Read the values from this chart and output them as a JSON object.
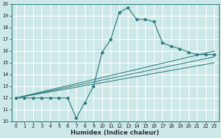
{
  "xlabel": "Humidex (Indice chaleur)",
  "bg_color": "#cce8e8",
  "grid_color": "#ffffff",
  "line_color": "#2d7d7d",
  "xlim": [
    -0.5,
    23.5
  ],
  "ylim": [
    10,
    20
  ],
  "xticks": [
    0,
    1,
    2,
    3,
    4,
    5,
    6,
    7,
    8,
    9,
    10,
    11,
    12,
    13,
    14,
    15,
    16,
    17,
    18,
    19,
    20,
    21,
    22,
    23
  ],
  "yticks": [
    10,
    11,
    12,
    13,
    14,
    15,
    16,
    17,
    18,
    19,
    20
  ],
  "main_line_x": [
    0,
    1,
    2,
    3,
    4,
    5,
    6,
    7,
    8,
    9,
    10,
    11,
    12,
    13,
    14,
    15,
    16,
    17,
    18,
    19,
    20,
    21,
    22,
    23
  ],
  "main_line_y": [
    12,
    12,
    12,
    12,
    12,
    12,
    12,
    10.3,
    11.6,
    13,
    15.9,
    17,
    19.3,
    19.7,
    18.7,
    18.7,
    18.5,
    16.7,
    16.4,
    16.2,
    15.9,
    15.7,
    15.7,
    15.7
  ],
  "reg_lines": [
    {
      "x": [
        0,
        23
      ],
      "y": [
        12.0,
        15.0
      ]
    },
    {
      "x": [
        0,
        23
      ],
      "y": [
        12.0,
        15.5
      ]
    },
    {
      "x": [
        0,
        23
      ],
      "y": [
        12.0,
        16.0
      ]
    }
  ],
  "xlabel_fontsize": 6.5,
  "tick_fontsize": 5.0
}
